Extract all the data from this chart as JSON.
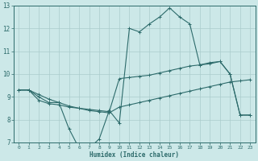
{
  "xlabel": "Humidex (Indice chaleur)",
  "bg_color": "#cce8e8",
  "grid_color": "#aacccc",
  "line_color": "#2d6b6b",
  "xlim": [
    -0.5,
    23.5
  ],
  "ylim": [
    7,
    13
  ],
  "xticks": [
    0,
    1,
    2,
    3,
    4,
    5,
    6,
    7,
    8,
    9,
    10,
    11,
    12,
    13,
    14,
    15,
    16,
    17,
    18,
    19,
    20,
    21,
    22,
    23
  ],
  "yticks": [
    7,
    8,
    9,
    10,
    11,
    12,
    13
  ],
  "line1_x": [
    0,
    1,
    2,
    3,
    4,
    5,
    6,
    7,
    8,
    9,
    10,
    11,
    12,
    13,
    14,
    15,
    16,
    17,
    18,
    19,
    20,
    21,
    22,
    23
  ],
  "line1_y": [
    9.3,
    9.3,
    9.1,
    8.9,
    8.75,
    8.6,
    8.5,
    8.4,
    8.35,
    8.3,
    8.55,
    8.65,
    8.75,
    8.85,
    8.95,
    9.05,
    9.15,
    9.25,
    9.35,
    9.45,
    9.55,
    9.65,
    9.7,
    9.75
  ],
  "line2_x": [
    0,
    1,
    2,
    3,
    4,
    5,
    6,
    7,
    8,
    9,
    10,
    11,
    12,
    13,
    14,
    15,
    16,
    17,
    18,
    19,
    20,
    21,
    22,
    23
  ],
  "line2_y": [
    9.3,
    9.3,
    9.0,
    8.75,
    8.75,
    7.6,
    6.75,
    6.75,
    7.15,
    8.4,
    7.85,
    12.0,
    11.85,
    12.2,
    12.5,
    12.9,
    12.5,
    12.2,
    10.4,
    10.5,
    10.55,
    10.0,
    8.2,
    8.2
  ],
  "line3_x": [
    0,
    1,
    2,
    3,
    4,
    5,
    6,
    7,
    8,
    9,
    10,
    11,
    12,
    13,
    14,
    15,
    16,
    17,
    18,
    19,
    20,
    21,
    22,
    23
  ],
  "line3_y": [
    9.3,
    9.3,
    8.85,
    8.7,
    8.65,
    8.55,
    8.5,
    8.45,
    8.4,
    8.35,
    9.8,
    9.85,
    9.9,
    9.95,
    10.05,
    10.15,
    10.25,
    10.35,
    10.4,
    10.45,
    10.55,
    10.0,
    8.2,
    8.2
  ]
}
